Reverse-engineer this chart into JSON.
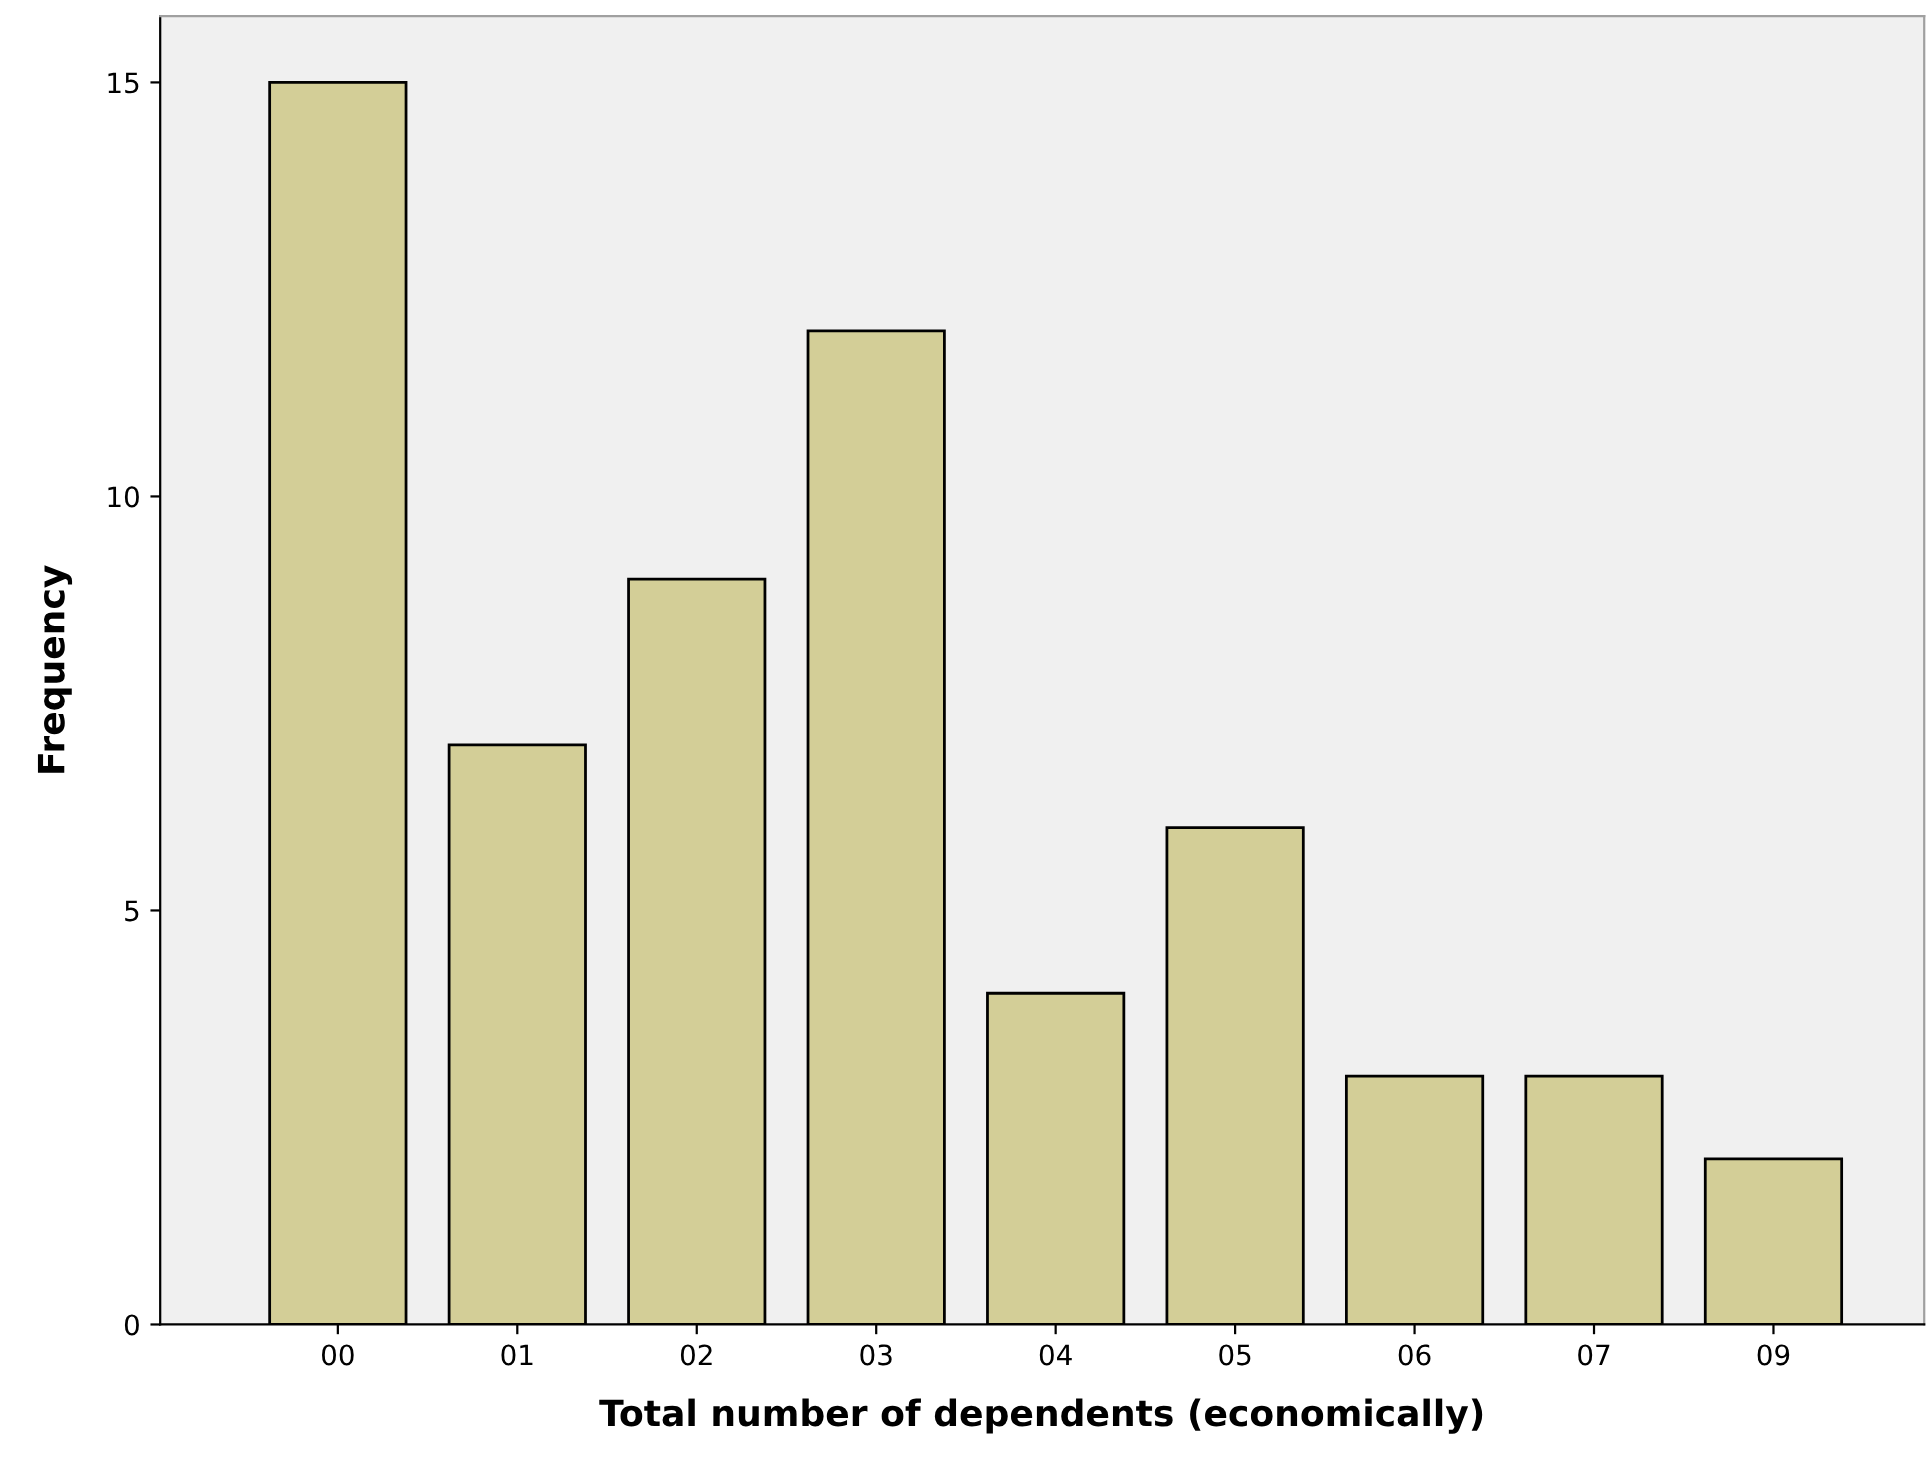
{
  "chart_data": {
    "type": "bar",
    "xlabel": "Total number of dependents (economically)",
    "ylabel": "Frequency",
    "categories": [
      "00",
      "01",
      "02",
      "03",
      "04",
      "05",
      "06",
      "07",
      "09"
    ],
    "values": [
      15,
      7,
      9,
      12,
      4,
      6,
      3,
      3,
      2
    ],
    "color": "#d3ce97",
    "ylim": [
      0,
      15.8
    ],
    "yticks": [
      0,
      5,
      10,
      15
    ],
    "grid": false
  }
}
